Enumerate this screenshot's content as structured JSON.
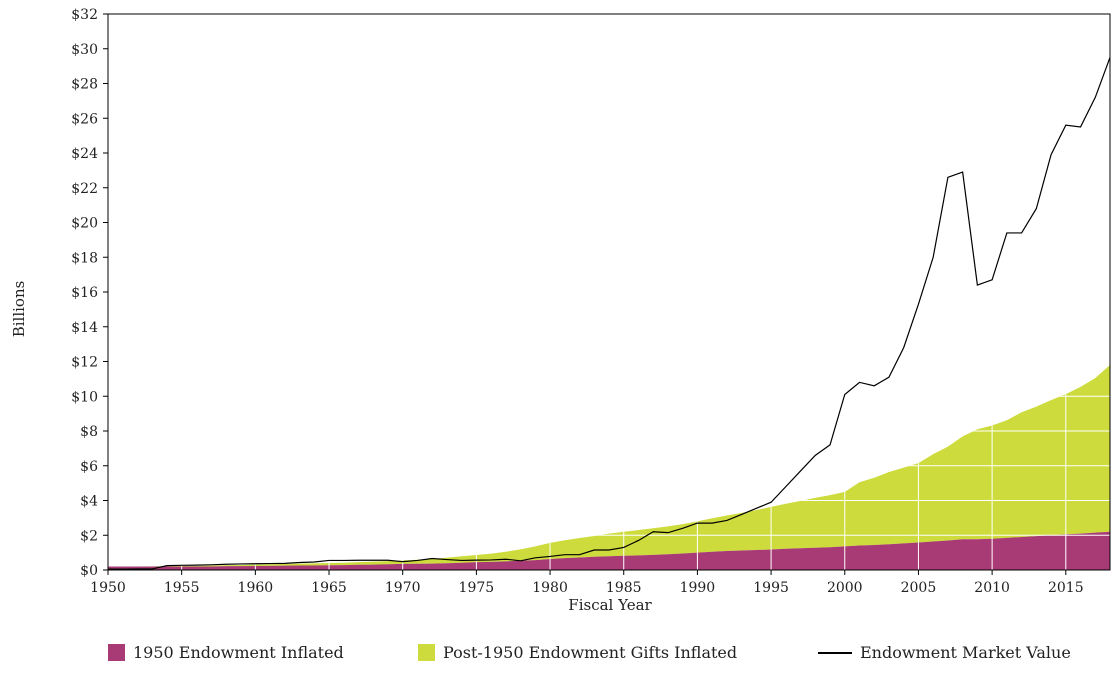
{
  "chart_data": {
    "type": "area",
    "xlabel": "Fiscal Year",
    "ylabel": "Billions",
    "xlim": [
      1950,
      2018
    ],
    "ylim": [
      0,
      32
    ],
    "x_ticks": [
      "1950",
      "1955",
      "1960",
      "1965",
      "1970",
      "1975",
      "1980",
      "1985",
      "1990",
      "1995",
      "2000",
      "2005",
      "2010",
      "2015"
    ],
    "y_ticks": [
      "$0",
      "$2",
      "$4",
      "$6",
      "$8",
      "$10",
      "$12",
      "$14",
      "$16",
      "$18",
      "$20",
      "$22",
      "$24",
      "$26",
      "$28",
      "$30",
      "$32"
    ],
    "grid": "vertical lines at x ticks, horizontal lines at y ticks inside filled areas",
    "legend_position": "bottom",
    "x": [
      1950,
      1951,
      1952,
      1953,
      1954,
      1955,
      1956,
      1957,
      1958,
      1959,
      1960,
      1961,
      1962,
      1963,
      1964,
      1965,
      1966,
      1967,
      1968,
      1969,
      1970,
      1971,
      1972,
      1973,
      1974,
      1975,
      1976,
      1977,
      1978,
      1979,
      1980,
      1981,
      1982,
      1983,
      1984,
      1985,
      1986,
      1987,
      1988,
      1989,
      1990,
      1991,
      1992,
      1993,
      1994,
      1995,
      1996,
      1997,
      1998,
      1999,
      2000,
      2001,
      2002,
      2003,
      2004,
      2005,
      2006,
      2007,
      2008,
      2009,
      2010,
      2011,
      2012,
      2013,
      2014,
      2015,
      2016,
      2017,
      2018
    ],
    "series": [
      {
        "name": "1950 Endowment Inflated",
        "color": "#a83b76",
        "kind": "area",
        "values": [
          0.2,
          0.2,
          0.2,
          0.2,
          0.2,
          0.2,
          0.2,
          0.2,
          0.22,
          0.22,
          0.23,
          0.24,
          0.25,
          0.26,
          0.26,
          0.27,
          0.28,
          0.3,
          0.31,
          0.33,
          0.35,
          0.36,
          0.37,
          0.39,
          0.42,
          0.45,
          0.47,
          0.5,
          0.53,
          0.57,
          0.63,
          0.68,
          0.72,
          0.76,
          0.79,
          0.82,
          0.84,
          0.87,
          0.91,
          0.95,
          1.0,
          1.05,
          1.09,
          1.12,
          1.15,
          1.18,
          1.22,
          1.25,
          1.28,
          1.31,
          1.36,
          1.41,
          1.44,
          1.48,
          1.53,
          1.58,
          1.64,
          1.7,
          1.77,
          1.77,
          1.8,
          1.85,
          1.9,
          1.95,
          2.0,
          2.05,
          2.09,
          2.15,
          2.2
        ]
      },
      {
        "name": "Post-1950 Endowment Gifts Inflated",
        "color": "#cddc3c",
        "kind": "area",
        "values": [
          0.0,
          0.0,
          0.0,
          0.01,
          0.02,
          0.03,
          0.04,
          0.05,
          0.06,
          0.07,
          0.08,
          0.09,
          0.1,
          0.11,
          0.12,
          0.13,
          0.14,
          0.15,
          0.17,
          0.18,
          0.2,
          0.23,
          0.27,
          0.32,
          0.37,
          0.41,
          0.47,
          0.55,
          0.66,
          0.79,
          0.93,
          1.03,
          1.12,
          1.2,
          1.3,
          1.38,
          1.46,
          1.53,
          1.6,
          1.69,
          1.8,
          1.93,
          2.05,
          2.17,
          2.3,
          2.45,
          2.59,
          2.73,
          2.87,
          3.0,
          3.14,
          3.64,
          3.87,
          4.16,
          4.36,
          4.57,
          5.03,
          5.4,
          5.92,
          6.33,
          6.52,
          6.77,
          7.18,
          7.45,
          7.78,
          8.07,
          8.45,
          8.9,
          9.6
        ]
      },
      {
        "name": "Endowment Market Value",
        "color": "#000000",
        "kind": "line",
        "values": [
          0.05,
          0.05,
          0.06,
          0.06,
          0.25,
          0.27,
          0.28,
          0.3,
          0.33,
          0.35,
          0.36,
          0.37,
          0.38,
          0.43,
          0.46,
          0.55,
          0.55,
          0.56,
          0.56,
          0.56,
          0.48,
          0.55,
          0.66,
          0.6,
          0.55,
          0.57,
          0.58,
          0.62,
          0.53,
          0.7,
          0.78,
          0.88,
          0.88,
          1.15,
          1.15,
          1.3,
          1.7,
          2.2,
          2.15,
          2.4,
          2.7,
          2.7,
          2.85,
          3.2,
          3.55,
          3.9,
          4.8,
          5.7,
          6.6,
          7.2,
          10.1,
          10.8,
          10.6,
          11.1,
          12.8,
          15.3,
          18.0,
          22.6,
          22.9,
          16.4,
          16.7,
          19.4,
          19.4,
          20.8,
          23.9,
          25.6,
          25.5,
          27.2,
          29.5
        ]
      }
    ]
  }
}
